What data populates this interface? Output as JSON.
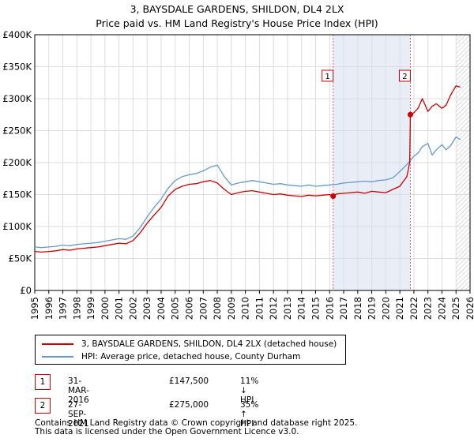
{
  "title_line1": "3, BAYSDALE GARDENS, SHILDON, DL4 2LX",
  "title_line2": "Price paid vs. HM Land Registry's House Price Index (HPI)",
  "chart_data": {
    "type": "line",
    "title": "3, BAYSDALE GARDENS, SHILDON, DL4 2LX - Price paid vs. HM Land Registry's House Price Index (HPI)",
    "xlim": [
      1995,
      2026
    ],
    "ylim": [
      0,
      400000
    ],
    "x_ticks": [
      "1995",
      "1996",
      "1997",
      "1998",
      "1999",
      "2000",
      "2001",
      "2002",
      "2003",
      "2004",
      "2005",
      "2006",
      "2007",
      "2008",
      "2009",
      "2010",
      "2011",
      "2012",
      "2013",
      "2014",
      "2015",
      "2016",
      "2017",
      "2018",
      "2019",
      "2020",
      "2021",
      "2022",
      "2023",
      "2024",
      "2025",
      "2026"
    ],
    "y_ticks": [
      {
        "value": 0,
        "label": "£0"
      },
      {
        "value": 50000,
        "label": "£50K"
      },
      {
        "value": 100000,
        "label": "£100K"
      },
      {
        "value": 150000,
        "label": "£150K"
      },
      {
        "value": 200000,
        "label": "£200K"
      },
      {
        "value": 250000,
        "label": "£250K"
      },
      {
        "value": 300000,
        "label": "£300K"
      },
      {
        "value": 350000,
        "label": "£350K"
      },
      {
        "value": 400000,
        "label": "£400K"
      }
    ],
    "grid": true,
    "shaded_span": [
      2016.25,
      2021.75
    ],
    "forecast_from": 2025.0,
    "series": [
      {
        "name": "3, BAYSDALE GARDENS, SHILDON, DL4 2LX (detached house)",
        "color": "#cc0000",
        "x": [
          1995.0,
          1995.5,
          1996.0,
          1996.5,
          1997.0,
          1997.5,
          1998.0,
          1998.5,
          1999.0,
          1999.5,
          2000.0,
          2000.5,
          2001.0,
          2001.5,
          2002.0,
          2002.5,
          2003.0,
          2003.5,
          2004.0,
          2004.5,
          2005.0,
          2005.5,
          2006.0,
          2006.5,
          2007.0,
          2007.5,
          2008.0,
          2008.5,
          2009.0,
          2009.5,
          2010.0,
          2010.5,
          2011.0,
          2011.5,
          2012.0,
          2012.5,
          2013.0,
          2013.5,
          2014.0,
          2014.5,
          2015.0,
          2015.5,
          2016.0,
          2016.25,
          2016.5,
          2017.0,
          2017.5,
          2018.0,
          2018.5,
          2019.0,
          2019.5,
          2020.0,
          2020.5,
          2021.0,
          2021.5,
          2021.7,
          2021.75,
          2022.0,
          2022.3,
          2022.6,
          2023.0,
          2023.3,
          2023.6,
          2024.0,
          2024.3,
          2024.6,
          2025.0,
          2025.3
        ],
        "y": [
          61000,
          60000,
          61000,
          62000,
          64000,
          63000,
          65000,
          66000,
          67000,
          68000,
          70000,
          72000,
          74000,
          73000,
          78000,
          90000,
          105000,
          118000,
          130000,
          148000,
          158000,
          163000,
          166000,
          167000,
          170000,
          172000,
          168000,
          158000,
          150000,
          153000,
          155000,
          156000,
          154000,
          152000,
          150000,
          151000,
          149000,
          148000,
          147000,
          149000,
          148000,
          149000,
          150000,
          147500,
          151000,
          152000,
          153000,
          154000,
          152000,
          155000,
          154000,
          153000,
          158000,
          163000,
          178000,
          200000,
          275000,
          278000,
          285000,
          300000,
          280000,
          288000,
          292000,
          285000,
          290000,
          305000,
          320000,
          318000
        ]
      },
      {
        "name": "HPI: Average price, detached house, County Durham",
        "color": "#6699cc",
        "x": [
          1995.0,
          1995.5,
          1996.0,
          1996.5,
          1997.0,
          1997.5,
          1998.0,
          1998.5,
          1999.0,
          1999.5,
          2000.0,
          2000.5,
          2001.0,
          2001.5,
          2002.0,
          2002.5,
          2003.0,
          2003.5,
          2004.0,
          2004.5,
          2005.0,
          2005.5,
          2006.0,
          2006.5,
          2007.0,
          2007.5,
          2008.0,
          2008.5,
          2009.0,
          2009.5,
          2010.0,
          2010.5,
          2011.0,
          2011.5,
          2012.0,
          2012.5,
          2013.0,
          2013.5,
          2014.0,
          2014.5,
          2015.0,
          2015.5,
          2016.0,
          2016.5,
          2017.0,
          2017.5,
          2018.0,
          2018.5,
          2019.0,
          2019.5,
          2020.0,
          2020.5,
          2021.0,
          2021.5,
          2022.0,
          2022.3,
          2022.6,
          2023.0,
          2023.3,
          2023.6,
          2024.0,
          2024.3,
          2024.6,
          2025.0,
          2025.3
        ],
        "y": [
          68000,
          67000,
          68000,
          69000,
          71000,
          70000,
          72000,
          73000,
          74000,
          75000,
          77000,
          79000,
          81000,
          80000,
          85000,
          98000,
          115000,
          130000,
          143000,
          160000,
          172000,
          178000,
          181000,
          183000,
          187000,
          193000,
          196000,
          178000,
          165000,
          168000,
          170000,
          172000,
          170000,
          168000,
          166000,
          167000,
          165000,
          164000,
          163000,
          165000,
          163000,
          164000,
          165000,
          166000,
          168000,
          169000,
          170000,
          171000,
          170000,
          172000,
          173000,
          176000,
          186000,
          197000,
          210000,
          215000,
          225000,
          230000,
          212000,
          220000,
          228000,
          220000,
          226000,
          240000,
          236000
        ]
      }
    ],
    "sales": [
      {
        "label": "1",
        "x": 2016.25,
        "y": 147500
      },
      {
        "label": "2",
        "x": 2021.75,
        "y": 275000
      }
    ]
  },
  "legend": {
    "house_label": "3, BAYSDALE GARDENS, SHILDON, DL4 2LX (detached house)",
    "hpi_label": "HPI: Average price, detached house, County Durham"
  },
  "annotations": [
    {
      "num": "1",
      "date": "31-MAR-2016",
      "price": "£147,500",
      "hpi": "11% ↓ HPI"
    },
    {
      "num": "2",
      "date": "27-SEP-2021",
      "price": "£275,000",
      "hpi": "35% ↑ HPI"
    }
  ],
  "footer": {
    "line1": "Contains HM Land Registry data © Crown copyright and database right 2025.",
    "line2": "This data is licensed under the Open Government Licence v3.0."
  },
  "colors": {
    "house": "#cc0000",
    "hpi": "#6699cc",
    "shade": "#e8eef8",
    "grid": "#dddddd",
    "marker": "#cc0000"
  }
}
